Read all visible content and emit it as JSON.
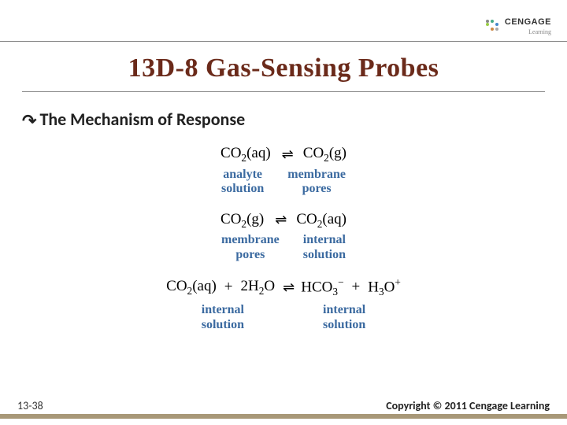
{
  "logo": {
    "brand_a": "CENGAGE",
    "brand_b": "Learning"
  },
  "title": "13D-8 Gas-Sensing Probes",
  "subheading": "The Mechanism of Response",
  "bullet_glyph": "↷",
  "equilibrium_glyph": "⇌",
  "eq1": {
    "left_species": "CO",
    "left_sub": "2",
    "left_state": "(aq)",
    "right_species": "CO",
    "right_sub": "2",
    "right_state": "(g)",
    "left_label_a": "analyte",
    "left_label_b": "solution",
    "right_label_a": "membrane",
    "right_label_b": "pores"
  },
  "eq2": {
    "left_species": "CO",
    "left_sub": "2",
    "left_state": "(g)",
    "right_species": "CO",
    "right_sub": "2",
    "right_state": "(aq)",
    "left_label_a": "membrane",
    "left_label_b": "pores",
    "right_label_a": "internal",
    "right_label_b": "solution"
  },
  "eq3": {
    "r1": "CO",
    "r1_sub": "2",
    "r1_state": "(aq)",
    "plus1": "+",
    "r2_coeff": "2",
    "r2": "H",
    "r2_sub": "2",
    "r2b": "O",
    "p1": "HCO",
    "p1_sub": "3",
    "p1_sup": "−",
    "plus2": "+",
    "p2": "H",
    "p2_sub": "3",
    "p2b": "O",
    "p2_sup": "+",
    "left_label_a": "internal",
    "left_label_b": "solution",
    "right_label_a": "internal",
    "right_label_b": "solution"
  },
  "page_number": "13-38",
  "copyright": "Copyright © 2011 Cengage Learning",
  "colors": {
    "title_color": "#6b2a1a",
    "label_color": "#3b6aa0",
    "footer_bar": "#a89878"
  }
}
